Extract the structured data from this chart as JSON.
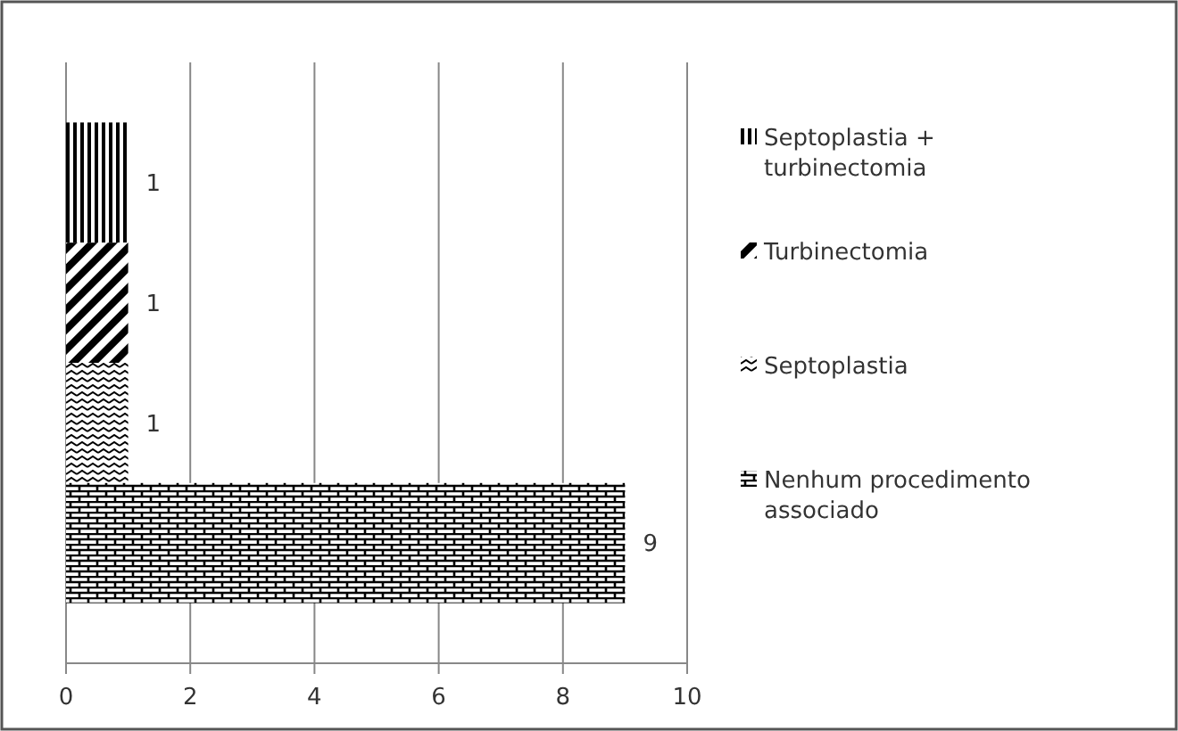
{
  "chart_data": {
    "type": "bar",
    "orientation": "horizontal",
    "categories": [
      null
    ],
    "series": [
      {
        "name": "Septoplastia + turbinectomia",
        "color": "#000000",
        "values": [
          1
        ]
      },
      {
        "name": "Turbinectomia",
        "color": "#000000",
        "values": [
          1
        ]
      },
      {
        "name": "Septoplastia",
        "color": "#000000",
        "values": [
          1
        ]
      },
      {
        "name": "Nenhum procedimento associado",
        "color": "#000000",
        "values": [
          9
        ]
      }
    ],
    "xlim": [
      0,
      10
    ],
    "xticks": [
      0,
      2,
      4,
      6,
      8,
      10
    ],
    "grid": "x",
    "legend": "right",
    "data_labels": true
  }
}
